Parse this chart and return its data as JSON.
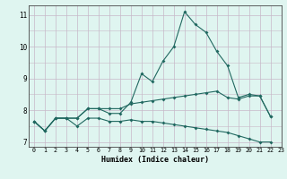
{
  "x": [
    0,
    1,
    2,
    3,
    4,
    5,
    6,
    7,
    8,
    9,
    10,
    11,
    12,
    13,
    14,
    15,
    16,
    17,
    18,
    19,
    20,
    21,
    22,
    23
  ],
  "line1": [
    7.65,
    7.35,
    7.75,
    7.75,
    7.75,
    8.05,
    8.05,
    7.9,
    7.9,
    8.25,
    9.15,
    8.9,
    9.55,
    10.0,
    11.1,
    10.7,
    10.45,
    9.85,
    9.4,
    8.4,
    8.5,
    8.45,
    7.8,
    null
  ],
  "line2": [
    7.65,
    7.35,
    7.75,
    7.75,
    7.75,
    8.05,
    8.05,
    8.05,
    8.05,
    8.2,
    8.25,
    8.3,
    8.35,
    8.4,
    8.45,
    8.5,
    8.55,
    8.6,
    8.4,
    8.35,
    8.45,
    8.45,
    7.8,
    null
  ],
  "line3": [
    7.65,
    7.35,
    7.75,
    7.75,
    7.5,
    7.75,
    7.75,
    7.65,
    7.65,
    7.7,
    7.65,
    7.65,
    7.6,
    7.55,
    7.5,
    7.45,
    7.4,
    7.35,
    7.3,
    7.2,
    7.1,
    7.0,
    7.0,
    null
  ],
  "xlabel": "Humidex (Indice chaleur)",
  "ylim": [
    6.85,
    11.3
  ],
  "xlim": [
    -0.5,
    23
  ],
  "yticks": [
    7,
    8,
    9,
    10,
    11
  ],
  "xticks": [
    0,
    1,
    2,
    3,
    4,
    5,
    6,
    7,
    8,
    9,
    10,
    11,
    12,
    13,
    14,
    15,
    16,
    17,
    18,
    19,
    20,
    21,
    22,
    23
  ],
  "line_color": "#206860",
  "bg_color": "#dff5f0",
  "grid_color": "#c8b8c8"
}
